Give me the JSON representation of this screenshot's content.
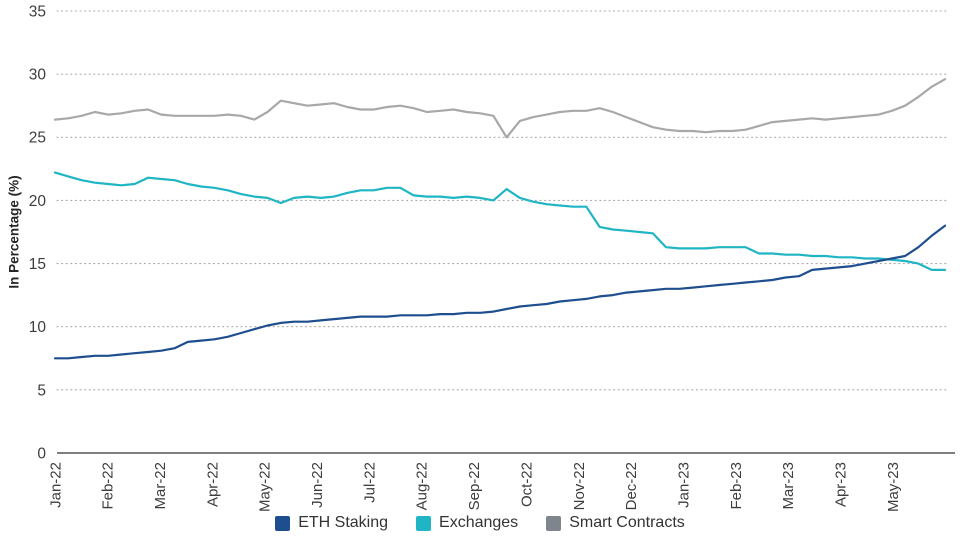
{
  "chart_data": {
    "type": "line",
    "title": "",
    "xlabel": "",
    "ylabel": "In Percentage (%)",
    "ylim": [
      0,
      35
    ],
    "yticks": [
      0,
      5,
      10,
      15,
      20,
      25,
      30,
      35
    ],
    "grid": "horizontal-dotted",
    "legend_position": "bottom-center",
    "x_tick_rotation": -90,
    "categories": [
      "Jan-22",
      "Feb-22",
      "Mar-22",
      "Apr-22",
      "May-22",
      "Jun-22",
      "Jul-22",
      "Aug-22",
      "Sep-22",
      "Oct-22",
      "Nov-22",
      "Dec-22",
      "Jan-23",
      "Feb-23",
      "Mar-23",
      "Apr-23",
      "May-23"
    ],
    "points_per_month": 4,
    "colors": {
      "axis": "#555555",
      "gridline": "#a8a8a8",
      "tick_label": "#3d3d3d",
      "axis_title": "#262626"
    },
    "series": [
      {
        "name": "Smart Contracts",
        "color": "#a8a8a8",
        "legend_color": "#7e858c",
        "values": [
          26.4,
          26.5,
          26.7,
          27.0,
          26.8,
          26.9,
          27.1,
          27.2,
          26.8,
          26.7,
          26.7,
          26.7,
          26.7,
          26.8,
          26.7,
          26.4,
          27.0,
          27.9,
          27.7,
          27.5,
          27.6,
          27.7,
          27.4,
          27.2,
          27.2,
          27.4,
          27.5,
          27.3,
          27.0,
          27.1,
          27.2,
          27.0,
          26.9,
          26.7,
          25.0,
          26.3,
          26.6,
          26.8,
          27.0,
          27.1,
          27.1,
          27.3,
          27.0,
          26.6,
          26.2,
          25.8,
          25.6,
          25.5,
          25.5,
          25.4,
          25.5,
          25.5,
          25.6,
          25.9,
          26.2,
          26.3,
          26.4,
          26.5,
          26.4,
          26.5,
          26.6,
          26.7,
          26.8,
          27.1,
          27.5,
          28.2,
          29.0,
          29.6
        ]
      },
      {
        "name": "Exchanges",
        "color": "#1fb5c5",
        "legend_color": "#1fb5c5",
        "values": [
          22.2,
          21.9,
          21.6,
          21.4,
          21.3,
          21.2,
          21.3,
          21.8,
          21.7,
          21.6,
          21.3,
          21.1,
          21.0,
          20.8,
          20.5,
          20.3,
          20.2,
          19.8,
          20.2,
          20.3,
          20.2,
          20.3,
          20.6,
          20.8,
          20.8,
          21.0,
          21.0,
          20.4,
          20.3,
          20.3,
          20.2,
          20.3,
          20.2,
          20.0,
          20.9,
          20.2,
          19.9,
          19.7,
          19.6,
          19.5,
          19.5,
          17.9,
          17.7,
          17.6,
          17.5,
          17.4,
          16.3,
          16.2,
          16.2,
          16.2,
          16.3,
          16.3,
          16.3,
          15.8,
          15.8,
          15.7,
          15.7,
          15.6,
          15.6,
          15.5,
          15.5,
          15.4,
          15.4,
          15.3,
          15.2,
          15.0,
          14.5,
          14.5
        ]
      },
      {
        "name": "ETH Staking",
        "color": "#1f4e8f",
        "legend_color": "#1f4e8f",
        "values": [
          7.5,
          7.5,
          7.6,
          7.7,
          7.7,
          7.8,
          7.9,
          8.0,
          8.1,
          8.3,
          8.8,
          8.9,
          9.0,
          9.2,
          9.5,
          9.8,
          10.1,
          10.3,
          10.4,
          10.4,
          10.5,
          10.6,
          10.7,
          10.8,
          10.8,
          10.8,
          10.9,
          10.9,
          10.9,
          11.0,
          11.0,
          11.1,
          11.1,
          11.2,
          11.4,
          11.6,
          11.7,
          11.8,
          12.0,
          12.1,
          12.2,
          12.4,
          12.5,
          12.7,
          12.8,
          12.9,
          13.0,
          13.0,
          13.1,
          13.2,
          13.3,
          13.4,
          13.5,
          13.6,
          13.7,
          13.9,
          14.0,
          14.5,
          14.6,
          14.7,
          14.8,
          15.0,
          15.2,
          15.4,
          15.6,
          16.3,
          17.2,
          18.0
        ]
      }
    ],
    "legend_order": [
      "ETH Staking",
      "Exchanges",
      "Smart Contracts"
    ]
  }
}
